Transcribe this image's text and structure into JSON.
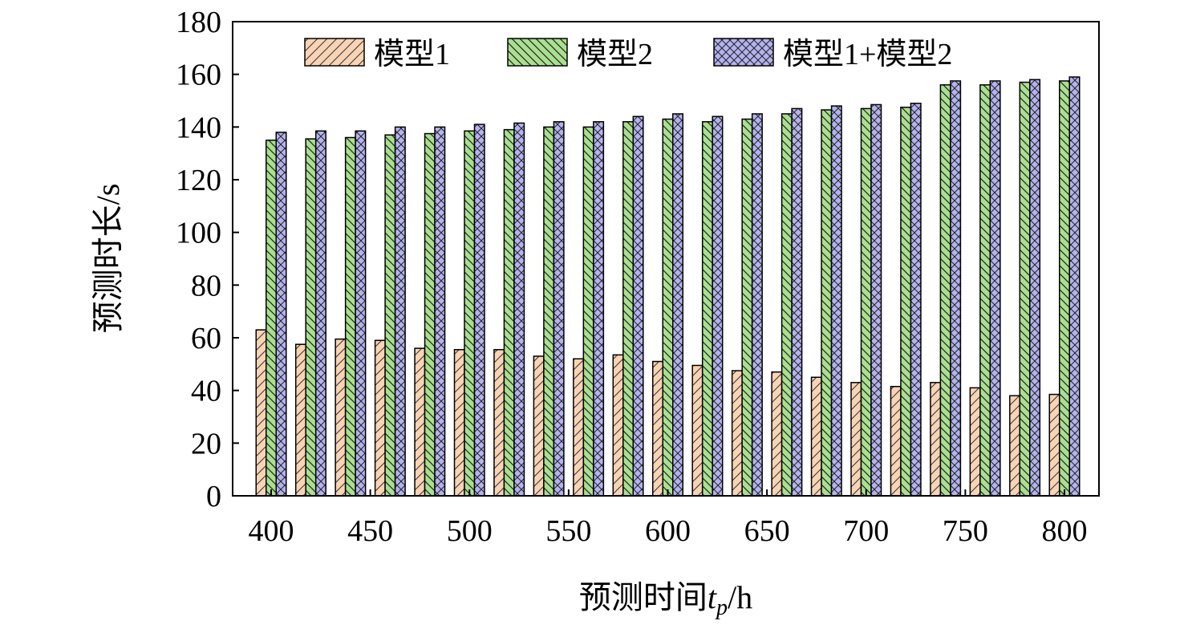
{
  "chart_data": {
    "type": "bar",
    "xlabel_main": "预测时间",
    "xlabel_var": "t",
    "xlabel_sub": "p",
    "xlabel_unit": "/h",
    "ylabel": "预测时长/s",
    "ylim": [
      0,
      180
    ],
    "yticks": [
      0,
      20,
      40,
      60,
      80,
      100,
      120,
      140,
      160,
      180
    ],
    "xlim": [
      400,
      800
    ],
    "xticks": [
      400,
      450,
      500,
      550,
      600,
      650,
      700,
      750,
      800
    ],
    "x": [
      400,
      420,
      440,
      460,
      480,
      500,
      520,
      540,
      560,
      580,
      600,
      620,
      640,
      660,
      680,
      700,
      720,
      740,
      760,
      780,
      800
    ],
    "legend_position": "top",
    "grid": false,
    "series": [
      {
        "name": "模型1",
        "color": "#f8d3b4",
        "pattern": "forward-diagonal",
        "values": [
          63,
          57.5,
          59.5,
          59,
          56,
          55.5,
          55.5,
          53,
          52,
          53.5,
          51,
          49.5,
          47.5,
          47,
          45,
          43,
          41.5,
          43,
          41,
          38,
          38.5
        ]
      },
      {
        "name": "模型2",
        "color": "#a9e08f",
        "pattern": "back-diagonal",
        "values": [
          135,
          135.5,
          136,
          137,
          137.5,
          138.5,
          139,
          140,
          140,
          142,
          143,
          142,
          143,
          145,
          146.5,
          147,
          147.5,
          156,
          156,
          157,
          157.5
        ]
      },
      {
        "name": "模型1+模型2",
        "color": "#b4b3ef",
        "pattern": "crosshatch",
        "values": [
          138,
          138.5,
          138.5,
          140,
          140,
          141,
          141.5,
          142,
          142,
          144,
          145,
          144,
          145,
          147,
          148,
          148.5,
          149,
          157.5,
          157.5,
          158,
          159
        ]
      }
    ]
  }
}
